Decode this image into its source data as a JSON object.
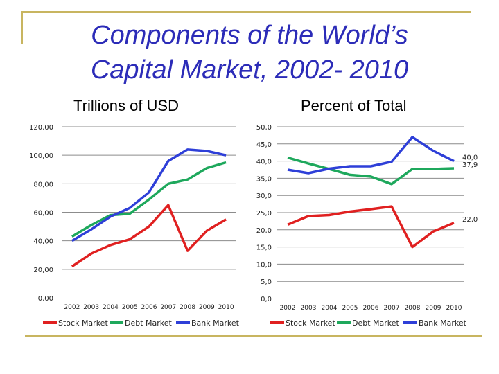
{
  "slide": {
    "title_line1": "Components of the World’s",
    "title_line2": "Capital Market, 2002- 2010",
    "left_subtitle": "Trillions of USD",
    "right_subtitle": "Percent of Total",
    "accent_color": "#c8b560",
    "title_color": "#2c2cb8"
  },
  "chart_data": [
    {
      "type": "line",
      "title": "Trillions of USD",
      "categories": [
        "2002",
        "2003",
        "2004",
        "2005",
        "2006",
        "2007",
        "2008",
        "2009",
        "2010"
      ],
      "ylim": [
        0,
        120
      ],
      "yticks": [
        "0,00",
        "20,00",
        "40,00",
        "60,00",
        "80,00",
        "100,00",
        "120,00"
      ],
      "ytick_values": [
        0,
        20,
        40,
        60,
        80,
        100,
        120
      ],
      "grid": true,
      "legend": "bottom",
      "series": [
        {
          "name": "Stock Market",
          "color": "#e02020",
          "values": [
            22,
            31,
            37,
            41,
            50,
            65,
            33,
            47,
            55
          ]
        },
        {
          "name": "Debt Market",
          "color": "#1ea85c",
          "values": [
            43,
            51,
            58,
            59,
            69,
            80,
            83,
            91,
            95
          ]
        },
        {
          "name": "Bank Market",
          "color": "#2e3fd8",
          "values": [
            40,
            48,
            57,
            63,
            74,
            96,
            104,
            103,
            100
          ]
        }
      ]
    },
    {
      "type": "line",
      "title": "Percent of Total",
      "categories": [
        "2002",
        "2003",
        "2004",
        "2005",
        "2006",
        "2007",
        "2008",
        "2009",
        "2010"
      ],
      "ylim": [
        0,
        50
      ],
      "yticks": [
        "0,0",
        "5,0",
        "10,0",
        "15,0",
        "20,0",
        "25,0",
        "30,0",
        "35,0",
        "40,0",
        "45,0",
        "50,0"
      ],
      "ytick_values": [
        0,
        5,
        10,
        15,
        20,
        25,
        30,
        35,
        40,
        45,
        50
      ],
      "grid": true,
      "legend": "bottom",
      "series": [
        {
          "name": "Stock Market",
          "color": "#e02020",
          "values": [
            21.5,
            24,
            24.3,
            25.3,
            26,
            26.8,
            15,
            19.5,
            22
          ],
          "end_label": "22,0"
        },
        {
          "name": "Debt Market",
          "color": "#1ea85c",
          "values": [
            41,
            39.3,
            37.7,
            36,
            35.5,
            33.3,
            37.7,
            37.7,
            37.9
          ],
          "end_label": "37,9"
        },
        {
          "name": "Bank Market",
          "color": "#2e3fd8",
          "values": [
            37.5,
            36.5,
            37.8,
            38.5,
            38.5,
            39.8,
            47,
            43,
            40
          ],
          "end_label": "40,0"
        }
      ]
    }
  ]
}
